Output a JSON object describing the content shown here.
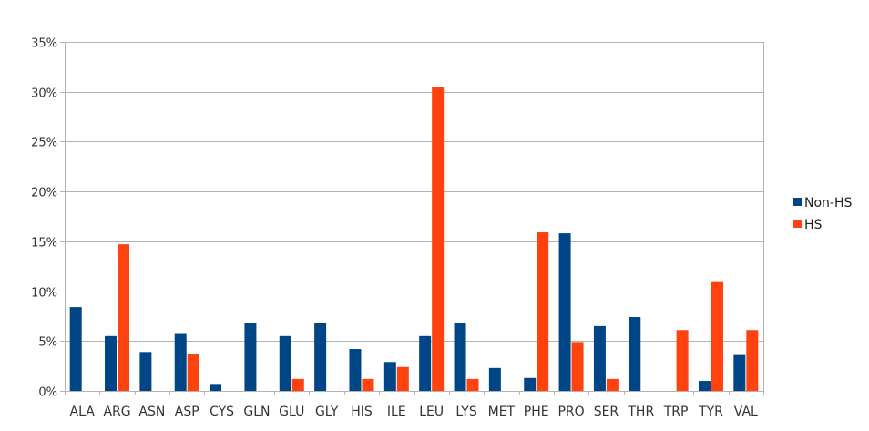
{
  "chart_data": {
    "type": "bar",
    "title": "",
    "xlabel": "",
    "ylabel": "",
    "ylim": [
      0,
      35
    ],
    "y_ticks": [
      "0%",
      "5%",
      "10%",
      "15%",
      "20%",
      "25%",
      "30%",
      "35%"
    ],
    "y_tick_values": [
      0,
      5,
      10,
      15,
      20,
      25,
      30,
      35
    ],
    "grid": true,
    "legend_position": "right",
    "categories": [
      "ALA",
      "ARG",
      "ASN",
      "ASP",
      "CYS",
      "GLN",
      "GLU",
      "GLY",
      "HIS",
      "ILE",
      "LEU",
      "LYS",
      "MET",
      "PHE",
      "PRO",
      "SER",
      "THR",
      "TRP",
      "TYR",
      "VAL"
    ],
    "series": [
      {
        "name": "Non-HS",
        "color": "#004586",
        "values": [
          8.4,
          5.5,
          3.9,
          5.8,
          0.7,
          6.8,
          5.5,
          6.8,
          4.2,
          2.9,
          5.5,
          6.8,
          2.3,
          1.3,
          15.8,
          6.5,
          7.4,
          0.0,
          1.0,
          3.6
        ]
      },
      {
        "name": "HS",
        "color": "#ff420e",
        "values": [
          0.0,
          14.7,
          0.0,
          3.7,
          0.0,
          0.0,
          1.2,
          0.0,
          1.2,
          2.4,
          30.5,
          1.2,
          0.0,
          15.9,
          4.9,
          1.2,
          0.0,
          6.1,
          11.0,
          6.1
        ]
      }
    ]
  }
}
